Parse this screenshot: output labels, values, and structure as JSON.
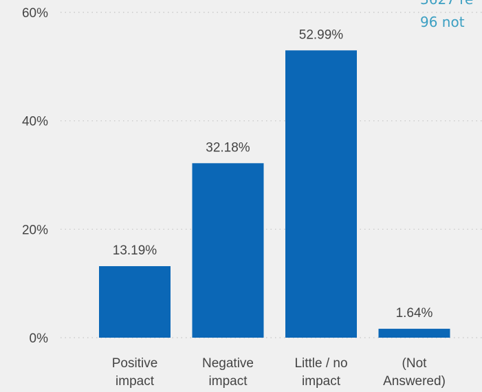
{
  "corner_note": {
    "line1": "3627 re",
    "line2": "96 not"
  },
  "chart_data": {
    "type": "bar",
    "categories": [
      [
        "Positive",
        "impact"
      ],
      [
        "Negative",
        "impact"
      ],
      [
        "Little / no",
        "impact"
      ],
      [
        "(Not",
        "Answered)"
      ]
    ],
    "values": [
      13.19,
      32.18,
      52.99,
      1.64
    ],
    "data_labels": [
      "13.19%",
      "32.18%",
      "52.99%",
      "1.64%"
    ],
    "yticks": [
      "0%",
      "20%",
      "40%",
      "60%"
    ],
    "ytick_values": [
      0,
      20,
      40,
      60
    ],
    "ylim": [
      0,
      60
    ],
    "grid": "dotted-horizontal",
    "bar_color": "#0b67b6"
  }
}
